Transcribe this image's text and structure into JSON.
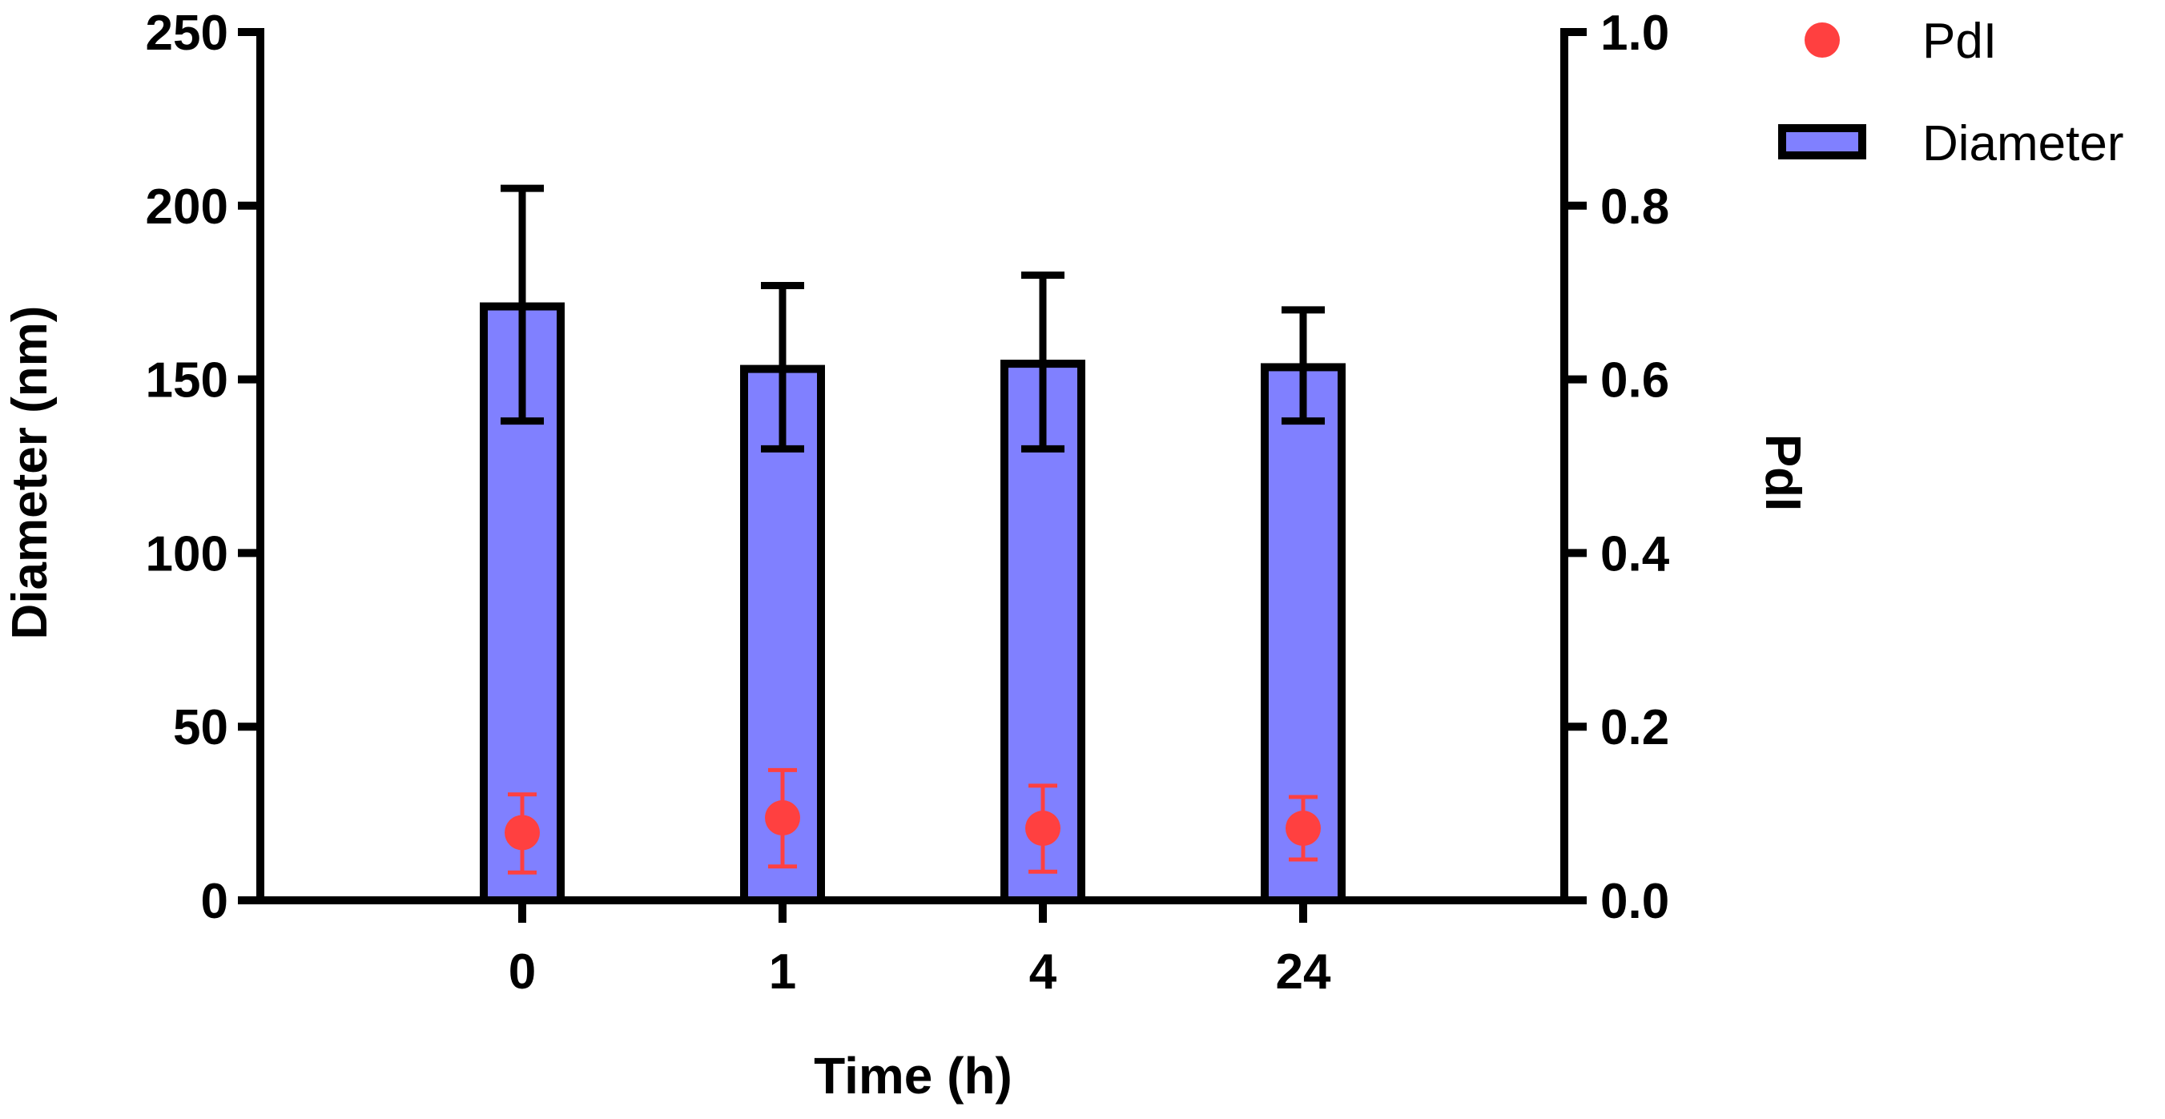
{
  "chart_data": {
    "type": "bar",
    "xlabel": "Time (h)",
    "ylabel": "Diameter (nm)",
    "y2label": "PdI",
    "categories": [
      "0",
      "1",
      "4",
      "24"
    ],
    "ylim": [
      0,
      250
    ],
    "y_ticks": [
      "0",
      "50",
      "100",
      "150",
      "200",
      "250"
    ],
    "y2lim": [
      0,
      1.0
    ],
    "y2_ticks": [
      "0.0",
      "0.2",
      "0.4",
      "0.6",
      "0.8",
      "1.0"
    ],
    "series": [
      {
        "name": "Diameter",
        "kind": "bar",
        "axis": "left",
        "values": [
          171,
          153,
          154.5,
          153.5
        ],
        "err_low": [
          138,
          130,
          130,
          138
        ],
        "err_high": [
          205,
          177,
          180,
          170
        ],
        "fill": "#8080ff",
        "stroke": "#000000"
      },
      {
        "name": "PdI",
        "kind": "scatter",
        "axis": "right",
        "values": [
          0.078,
          0.095,
          0.083,
          0.083
        ],
        "err_low": [
          0.032,
          0.039,
          0.033,
          0.047
        ],
        "err_high": [
          0.122,
          0.15,
          0.132,
          0.119
        ],
        "color": "#ff4040"
      }
    ],
    "legend": {
      "position": "top-right",
      "entries": [
        "PdI",
        "Diameter"
      ]
    }
  }
}
